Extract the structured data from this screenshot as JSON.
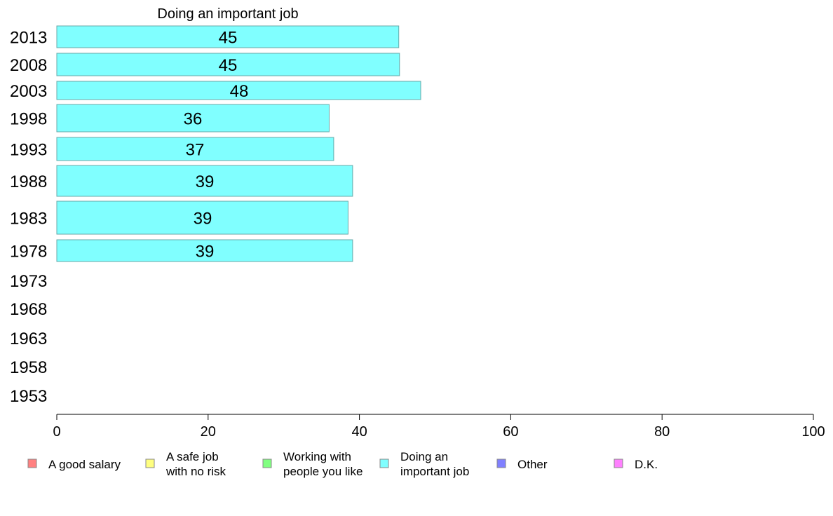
{
  "chart_data": {
    "type": "bar",
    "orientation": "horizontal",
    "title": "Doing an important job",
    "categories": [
      "2013",
      "2008",
      "2003",
      "1998",
      "1993",
      "1988",
      "1983",
      "1978",
      "1973",
      "1968",
      "1963",
      "1958",
      "1953"
    ],
    "series": [
      {
        "name": "Doing an important job",
        "color": "#80ffff",
        "values": [
          45.2,
          45.3,
          48.1,
          36.0,
          36.6,
          39.1,
          38.5,
          39.1,
          null,
          null,
          null,
          null,
          null
        ],
        "labels": [
          "45",
          "45",
          "48",
          "36",
          "37",
          "39",
          "39",
          "39",
          "",
          "",
          "",
          "",
          ""
        ]
      }
    ],
    "xlim": [
      0,
      100
    ],
    "xticks": [
      "0",
      "20",
      "40",
      "60",
      "80",
      "100"
    ],
    "grid": false,
    "legend_position": "bottom",
    "legend": [
      {
        "lines": [
          "A good salary"
        ],
        "color": "#ff8080"
      },
      {
        "lines": [
          "A safe job",
          "with no risk"
        ],
        "color": "#ffff80"
      },
      {
        "lines": [
          "Working with",
          "people you like"
        ],
        "color": "#80ff80"
      },
      {
        "lines": [
          "Doing an",
          "important job"
        ],
        "color": "#80ffff"
      },
      {
        "lines": [
          "Other"
        ],
        "color": "#8080ff"
      },
      {
        "lines": [
          "D.K."
        ],
        "color": "#ff80ff"
      }
    ],
    "bar_border_color": "#66aaaa",
    "axis_color": "#000000"
  }
}
